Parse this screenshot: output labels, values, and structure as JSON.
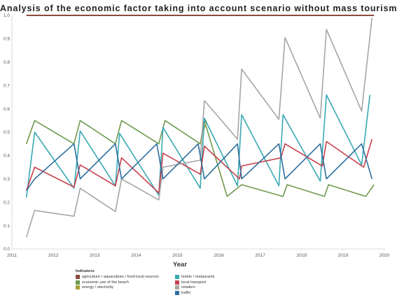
{
  "chart_data": {
    "type": "line",
    "title": "Analysis of the economic factor taking into account scenario without mass tourism",
    "xlabel": "Year",
    "ylabel": "",
    "xlim": [
      2011,
      2020
    ],
    "ylim": [
      0,
      1
    ],
    "x_ticks": [
      "2011",
      "2012",
      "2013",
      "2014",
      "2015",
      "2016",
      "2017",
      "2018",
      "2019",
      "2020"
    ],
    "y_ticks": [
      "0.0",
      "0.1",
      "0.2",
      "0.3",
      "0.4",
      "0.5",
      "0.6",
      "0.7",
      "0.8",
      "0.9",
      "1.0"
    ],
    "grid": false,
    "legend_position": "bottom-left",
    "legend_title": "Indicators",
    "series": [
      {
        "name": "agriculture / aquaculture / food local sources",
        "color": "#8B4A3C",
        "x": [
          2011.35,
          2019.75
        ],
        "y": [
          1.0,
          1.0
        ]
      },
      {
        "name": "economic use of the beach",
        "color": "#6E9A4E",
        "x": [
          2011.35,
          2011.55,
          2012.5,
          2012.65,
          2013.5,
          2013.65,
          2014.55,
          2014.7,
          2015.55,
          2015.65,
          2016.2,
          2016.55,
          2017.55,
          2017.65,
          2018.55,
          2018.65,
          2019.55,
          2019.75
        ],
        "y": [
          0.45,
          0.55,
          0.45,
          0.55,
          0.45,
          0.55,
          0.45,
          0.55,
          0.45,
          0.55,
          0.225,
          0.275,
          0.225,
          0.275,
          0.225,
          0.275,
          0.225,
          0.275
        ]
      },
      {
        "name": "energy / electricity",
        "color": "#A8A33A",
        "x": [
          2015.55,
          2015.7
        ],
        "y": [
          0.45,
          0.55
        ]
      },
      {
        "name": "hotels / restaurants",
        "color": "#38A9B4",
        "x": [
          2011.35,
          2011.55,
          2012.5,
          2012.65,
          2013.5,
          2013.6,
          2014.55,
          2014.65,
          2015.55,
          2015.65,
          2016.45,
          2016.55,
          2017.45,
          2017.55,
          2018.45,
          2018.6,
          2019.45,
          2019.65
        ],
        "y": [
          0.22,
          0.5,
          0.26,
          0.505,
          0.27,
          0.495,
          0.23,
          0.52,
          0.26,
          0.56,
          0.27,
          0.575,
          0.27,
          0.575,
          0.29,
          0.66,
          0.36,
          0.66
        ]
      },
      {
        "name": "local transport",
        "color": "#C8404C",
        "x": [
          2011.35,
          2011.55,
          2012.5,
          2012.65,
          2013.5,
          2013.65,
          2014.55,
          2014.65,
          2015.55,
          2015.65,
          2016.5,
          2016.55,
          2017.5,
          2017.6,
          2018.5,
          2018.6,
          2019.5,
          2019.7
        ],
        "y": [
          0.25,
          0.35,
          0.265,
          0.36,
          0.27,
          0.39,
          0.24,
          0.41,
          0.32,
          0.44,
          0.3,
          0.355,
          0.39,
          0.45,
          0.355,
          0.46,
          0.35,
          0.47
        ]
      },
      {
        "name": "retailers",
        "color": "#A6A6A6",
        "x": [
          2011.35,
          2011.55,
          2012.5,
          2012.65,
          2013.5,
          2013.65,
          2014.55,
          2014.65,
          2015.55,
          2015.65,
          2016.45,
          2016.55,
          2017.45,
          2017.6,
          2018.45,
          2018.6,
          2019.45,
          2019.7
        ],
        "y": [
          0.05,
          0.165,
          0.14,
          0.26,
          0.16,
          0.3,
          0.21,
          0.35,
          0.38,
          0.635,
          0.47,
          0.77,
          0.555,
          0.905,
          0.56,
          0.94,
          0.59,
          0.99
        ]
      },
      {
        "name": "traffic",
        "color": "#2E6F9E",
        "x": [
          2011.35,
          2011.55,
          2012.5,
          2012.65,
          2013.5,
          2013.65,
          2014.5,
          2014.65,
          2015.5,
          2015.65,
          2016.45,
          2016.55,
          2017.45,
          2017.6,
          2018.45,
          2018.6,
          2019.45,
          2019.7
        ],
        "y": [
          0.25,
          0.3,
          0.45,
          0.3,
          0.45,
          0.3,
          0.45,
          0.3,
          0.45,
          0.3,
          0.45,
          0.3,
          0.45,
          0.3,
          0.45,
          0.3,
          0.45,
          0.3
        ]
      }
    ]
  }
}
